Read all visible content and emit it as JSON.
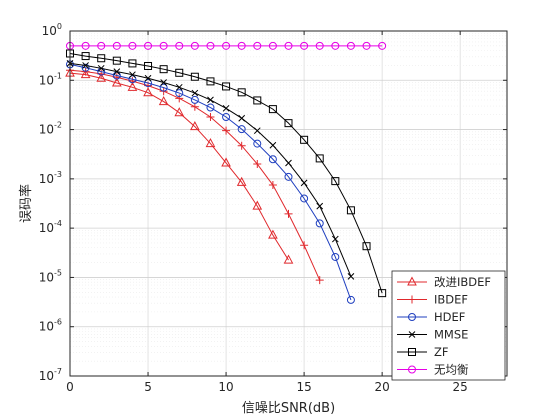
{
  "chart_data": {
    "type": "line",
    "xlabel": "信噪比SNR(dB)",
    "ylabel": "误码率",
    "xlim": [
      0,
      28
    ],
    "ylim": [
      1e-07,
      1
    ],
    "yscale": "log",
    "grid": true,
    "legend_position": "bottom-right",
    "x_ticks": [
      0,
      5,
      10,
      15,
      20,
      25
    ],
    "y_ticks": [
      {
        "value": 1,
        "base": "10",
        "exp": "0"
      },
      {
        "value": 0.1,
        "base": "10",
        "exp": "-1"
      },
      {
        "value": 0.01,
        "base": "10",
        "exp": "-2"
      },
      {
        "value": 0.001,
        "base": "10",
        "exp": "-3"
      },
      {
        "value": 0.0001,
        "base": "10",
        "exp": "-4"
      },
      {
        "value": 1e-05,
        "base": "10",
        "exp": "-5"
      },
      {
        "value": 1e-06,
        "base": "10",
        "exp": "-6"
      },
      {
        "value": 1e-07,
        "base": "10",
        "exp": "-7"
      }
    ],
    "series": [
      {
        "name": "改进IBDEF",
        "color": "#e0282c",
        "marker": "triangle",
        "x": [
          0,
          1,
          2,
          3,
          4,
          5,
          6,
          7,
          8,
          9,
          10,
          11,
          12,
          13,
          14
        ],
        "y": [
          0.14,
          0.13,
          0.11,
          0.088,
          0.072,
          0.056,
          0.037,
          0.022,
          0.0115,
          0.0052,
          0.0021,
          0.00085,
          0.00028,
          7.2e-05,
          2.25e-05
        ]
      },
      {
        "name": "IBDEF",
        "color": "#e0282c",
        "marker": "plus",
        "x": [
          0,
          1,
          2,
          3,
          4,
          5,
          6,
          7,
          8,
          9,
          10,
          11,
          12,
          13,
          14,
          15,
          16
        ],
        "y": [
          0.16,
          0.15,
          0.135,
          0.115,
          0.096,
          0.078,
          0.06,
          0.043,
          0.029,
          0.018,
          0.0095,
          0.0047,
          0.002,
          0.00075,
          0.000195,
          4.5e-05,
          8.8e-06
        ]
      },
      {
        "name": "HDEF",
        "color": "#1f3fbf",
        "marker": "circle",
        "x": [
          0,
          1,
          2,
          3,
          4,
          5,
          6,
          7,
          8,
          9,
          10,
          11,
          12,
          13,
          14,
          15,
          16,
          17,
          18
        ],
        "y": [
          0.21,
          0.18,
          0.15,
          0.125,
          0.105,
          0.088,
          0.071,
          0.055,
          0.04,
          0.028,
          0.018,
          0.0102,
          0.0052,
          0.0025,
          0.0011,
          0.0004,
          0.000125,
          2.6e-05,
          3.5e-06
        ]
      },
      {
        "name": "MMSE",
        "color": "#000000",
        "marker": "x",
        "x": [
          0,
          1,
          2,
          3,
          4,
          5,
          6,
          7,
          8,
          9,
          10,
          11,
          12,
          13,
          14,
          15,
          16,
          17,
          18
        ],
        "y": [
          0.22,
          0.2,
          0.175,
          0.15,
          0.13,
          0.11,
          0.09,
          0.072,
          0.055,
          0.04,
          0.027,
          0.017,
          0.0095,
          0.0048,
          0.0021,
          0.00083,
          0.00028,
          6e-05,
          1.05e-05
        ]
      },
      {
        "name": "ZF",
        "color": "#000000",
        "marker": "square",
        "x": [
          0,
          1,
          2,
          3,
          4,
          5,
          6,
          7,
          8,
          9,
          10,
          11,
          12,
          13,
          14,
          15,
          16,
          17,
          18,
          19,
          20
        ],
        "y": [
          0.35,
          0.31,
          0.28,
          0.25,
          0.22,
          0.195,
          0.168,
          0.142,
          0.118,
          0.095,
          0.075,
          0.057,
          0.039,
          0.026,
          0.0135,
          0.0062,
          0.0026,
          0.0009,
          0.00023,
          4.3e-05,
          4.8e-06
        ]
      },
      {
        "name": "无均衡",
        "color": "#e600e6",
        "marker": "circle",
        "x": [
          0,
          1,
          2,
          3,
          4,
          5,
          6,
          7,
          8,
          9,
          10,
          11,
          12,
          13,
          14,
          15,
          16,
          17,
          18,
          19,
          20
        ],
        "y": [
          0.5,
          0.5,
          0.5,
          0.5,
          0.5,
          0.5,
          0.5,
          0.5,
          0.5,
          0.5,
          0.5,
          0.5,
          0.5,
          0.5,
          0.5,
          0.5,
          0.5,
          0.5,
          0.5,
          0.5,
          0.5
        ]
      }
    ]
  }
}
